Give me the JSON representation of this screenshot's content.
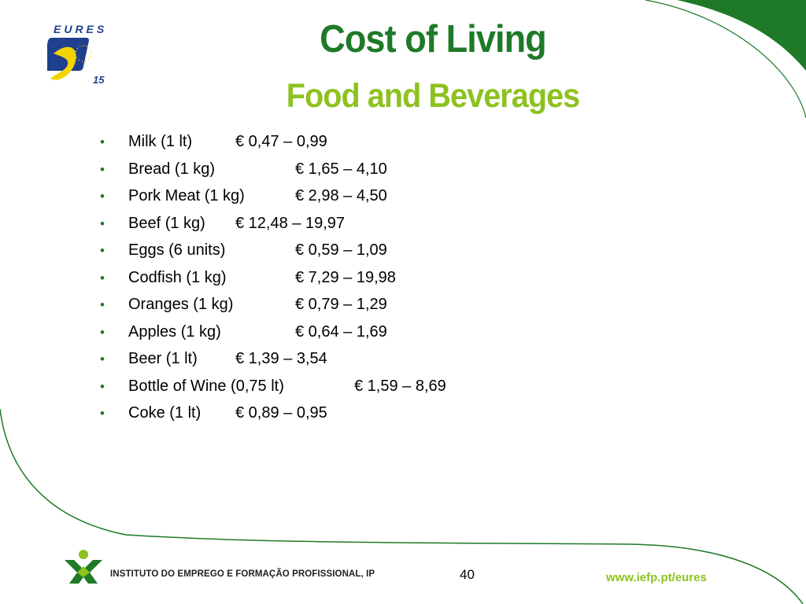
{
  "slide": {
    "title": "Cost of Living",
    "subtitle": "Food and Beverages",
    "items": [
      {
        "name": "Milk (1 lt)",
        "price": "€ 0,47 – 0,99"
      },
      {
        "name": "Bread (1 kg)",
        "price": "€ 1,65 – 4,10"
      },
      {
        "name": "Pork Meat (1 kg)",
        "price": "€ 2,98 – 4,50"
      },
      {
        "name": "Beef (1 kg)",
        "price": "€ 12,48 – 19,97"
      },
      {
        "name": "Eggs (6 units)",
        "price": "€ 0,59 – 1,09"
      },
      {
        "name": "Codfish (1 kg)",
        "price": "€ 7,29 – 19,98"
      },
      {
        "name": "Oranges (1 kg)",
        "price": "€ 0,79 – 1,29"
      },
      {
        "name": "Apples (1 kg)",
        "price": "€ 0,64 – 1,69"
      },
      {
        "name": "Beer (1 lt)",
        "price": "€ 1,39 – 3,54"
      },
      {
        "name": "Bottle of Wine (0,75 lt)",
        "price": "€ 1,59 – 8,69"
      },
      {
        "name": "Coke (1 lt)",
        "price": "€ 0,89 – 0,95"
      }
    ]
  },
  "logo": {
    "text": "EURES",
    "anniversary": "15"
  },
  "footer": {
    "organization": "INSTITUTO DO EMPREGO E FORMAÇÃO PROFISSIONAL, IP",
    "page_number": "40",
    "url": "www.iefp.pt/eures"
  },
  "colors": {
    "dark_green": "#1e7a27",
    "light_green": "#8dc21f",
    "logo_blue": "#1f3f8f",
    "logo_yellow": "#f2d400"
  }
}
